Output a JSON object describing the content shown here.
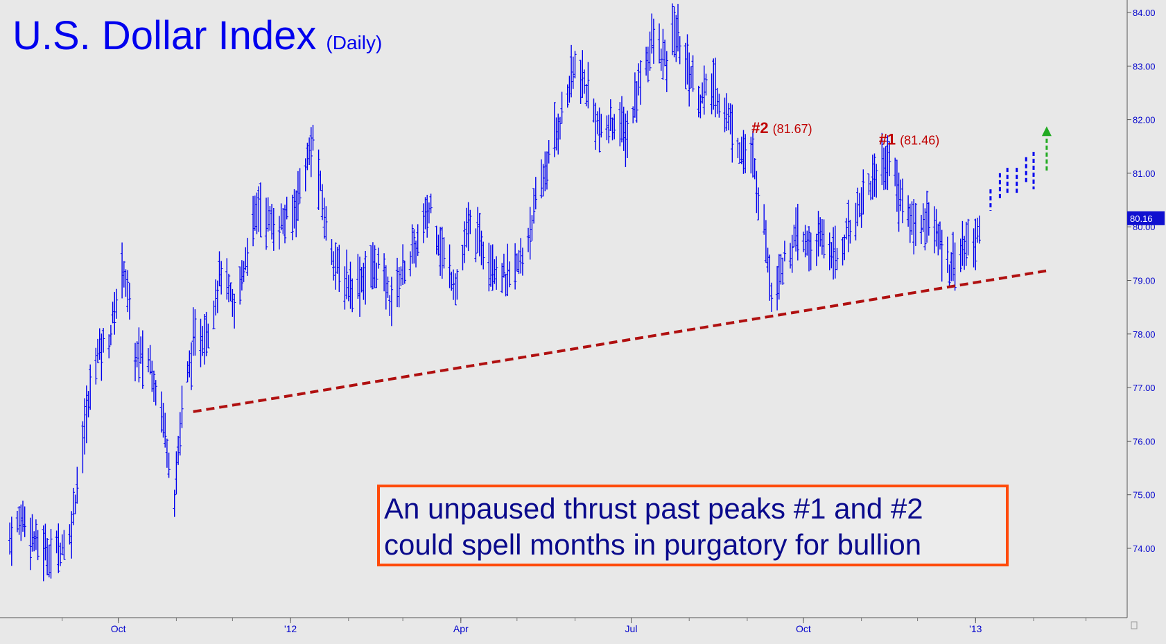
{
  "chart_data": {
    "type": "ohlc",
    "title": "U.S. Dollar Index",
    "subtitle": "(Daily)",
    "xlabel": "",
    "ylabel": "",
    "x_ticks": [
      "Oct",
      "'12",
      "Apr",
      "Jul",
      "Oct",
      "'13"
    ],
    "y_ticks": [
      "74.00",
      "75.00",
      "76.00",
      "77.00",
      "78.00",
      "79.00",
      "80.00",
      "81.00",
      "82.00",
      "83.00",
      "84.00"
    ],
    "ylim": [
      73.4,
      84.9
    ],
    "last_price_label": "80.16",
    "last_price": 80.16,
    "grid": false,
    "series_color": "#0000ee",
    "price_path": [
      [
        "2011-08-04",
        74.2
      ],
      [
        "2011-08-11",
        74.6
      ],
      [
        "2011-08-18",
        74.1
      ],
      [
        "2011-08-26",
        73.9
      ],
      [
        "2011-09-05",
        74.2
      ],
      [
        "2011-09-12",
        76.0
      ],
      [
        "2011-09-19",
        77.6
      ],
      [
        "2011-09-26",
        77.9
      ],
      [
        "2011-10-04",
        79.3
      ],
      [
        "2011-10-10",
        77.6
      ],
      [
        "2011-10-18",
        77.5
      ],
      [
        "2011-10-25",
        76.4
      ],
      [
        "2011-10-31",
        75.0
      ],
      [
        "2011-11-04",
        76.6
      ],
      [
        "2011-11-10",
        77.8
      ],
      [
        "2011-11-18",
        78.1
      ],
      [
        "2011-11-25",
        79.2
      ],
      [
        "2011-12-02",
        78.4
      ],
      [
        "2011-12-09",
        79.6
      ],
      [
        "2011-12-15",
        80.4
      ],
      [
        "2011-12-23",
        80.0
      ],
      [
        "2012-01-02",
        80.2
      ],
      [
        "2012-01-09",
        81.1
      ],
      [
        "2012-01-13",
        81.6
      ],
      [
        "2012-01-20",
        80.0
      ],
      [
        "2012-01-27",
        79.1
      ],
      [
        "2012-02-03",
        78.9
      ],
      [
        "2012-02-10",
        79.1
      ],
      [
        "2012-02-17",
        79.3
      ],
      [
        "2012-02-24",
        78.6
      ],
      [
        "2012-03-01",
        79.2
      ],
      [
        "2012-03-08",
        79.6
      ],
      [
        "2012-03-16",
        80.4
      ],
      [
        "2012-03-22",
        79.5
      ],
      [
        "2012-03-30",
        78.9
      ],
      [
        "2012-04-05",
        80.0
      ],
      [
        "2012-04-12",
        79.7
      ],
      [
        "2012-04-19",
        79.3
      ],
      [
        "2012-04-26",
        79.0
      ],
      [
        "2012-05-04",
        79.4
      ],
      [
        "2012-05-11",
        80.4
      ],
      [
        "2012-05-18",
        81.3
      ],
      [
        "2012-05-25",
        82.1
      ],
      [
        "2012-06-01",
        83.0
      ],
      [
        "2012-06-08",
        82.5
      ],
      [
        "2012-06-15",
        81.7
      ],
      [
        "2012-06-22",
        82.0
      ],
      [
        "2012-06-29",
        81.7
      ],
      [
        "2012-07-06",
        82.8
      ],
      [
        "2012-07-13",
        83.5
      ],
      [
        "2012-07-20",
        83.0
      ],
      [
        "2012-07-24",
        83.7
      ],
      [
        "2012-07-31",
        83.0
      ],
      [
        "2012-08-07",
        82.4
      ],
      [
        "2012-08-14",
        82.6
      ],
      [
        "2012-08-21",
        82.1
      ],
      [
        "2012-08-28",
        81.5
      ],
      [
        "2012-09-04",
        81.2
      ],
      [
        "2012-09-11",
        79.8
      ],
      [
        "2012-09-14",
        78.8
      ],
      [
        "2012-09-21",
        79.4
      ],
      [
        "2012-09-28",
        79.8
      ],
      [
        "2012-10-05",
        79.6
      ],
      [
        "2012-10-12",
        79.8
      ],
      [
        "2012-10-19",
        79.4
      ],
      [
        "2012-10-26",
        80.0
      ],
      [
        "2012-11-02",
        80.6
      ],
      [
        "2012-11-09",
        81.0
      ],
      [
        "2012-11-16",
        81.3
      ],
      [
        "2012-11-23",
        80.4
      ],
      [
        "2012-11-30",
        80.0
      ],
      [
        "2012-12-07",
        80.2
      ],
      [
        "2012-12-14",
        79.6
      ],
      [
        "2012-12-18",
        79.3
      ],
      [
        "2012-12-26",
        79.6
      ],
      [
        "2013-01-02",
        79.8
      ],
      [
        "2013-01-04",
        80.5
      ]
    ],
    "projected_bars": [
      [
        "2013-01-09",
        80.3,
        80.7
      ],
      [
        "2013-01-14",
        80.5,
        81.0
      ],
      [
        "2013-01-18",
        80.6,
        81.1
      ],
      [
        "2013-01-23",
        80.6,
        81.1
      ],
      [
        "2013-01-28",
        80.8,
        81.3
      ],
      [
        "2013-02-01",
        80.7,
        81.4
      ]
    ],
    "annotations": [
      {
        "label": "#2",
        "value": 81.67,
        "value_text": "(81.67)",
        "date": "2012-09-07",
        "color": "#c00000"
      },
      {
        "label": "#1",
        "value": 81.46,
        "value_text": "(81.46)",
        "date": "2012-11-14",
        "color": "#c00000"
      }
    ],
    "trendline": {
      "start": [
        "2011-11-10",
        76.55
      ],
      "end": [
        "2013-02-08",
        79.18
      ],
      "color": "#b01010",
      "style": "dashed"
    },
    "target_arrow": {
      "date": "2013-02-08",
      "from": 81.05,
      "to": 81.85,
      "color": "#22aa22",
      "style": "dashed"
    }
  },
  "note_box": {
    "line1": "An unpaused thrust past peaks #1 and #2",
    "line2": "could spell months in purgatory for bullion",
    "border_color": "#ff4a0a"
  }
}
